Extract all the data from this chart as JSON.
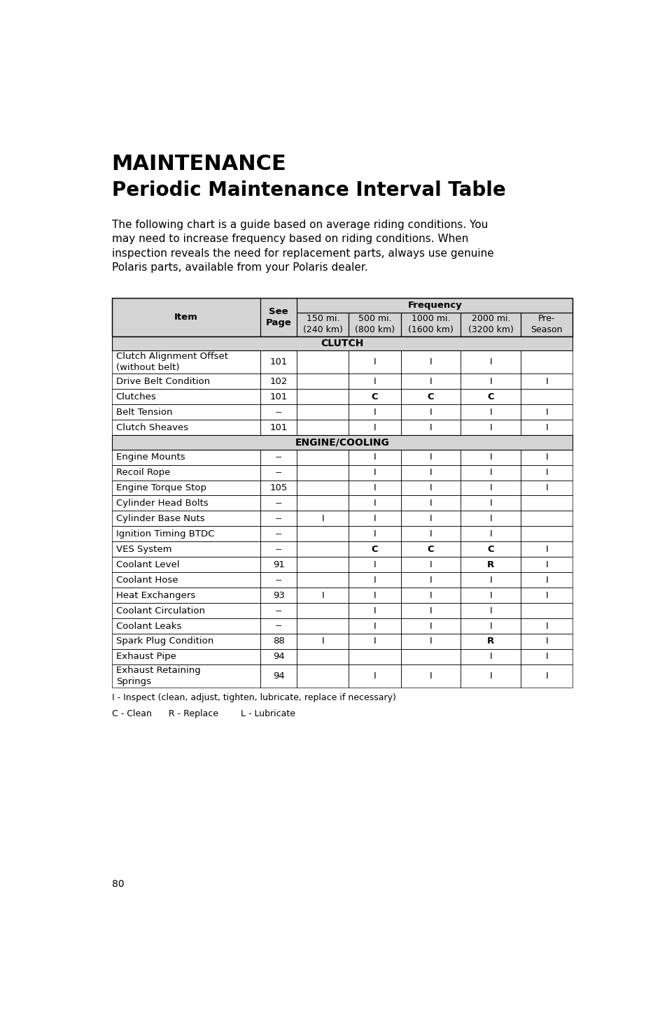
{
  "title1": "MAINTENANCE",
  "title2": "Periodic Maintenance Interval Table",
  "intro_text": "The following chart is a guide based on average riding conditions. You may need to increase frequency based on riding conditions. When inspection reveals the need for replacement parts, always use genuine Polaris parts, available from your Polaris dealer.",
  "col_headers_row2": [
    "",
    "",
    "150 mi.\n(240 km)",
    "500 mi.\n(800 km)",
    "1000 mi.\n(1600 km)",
    "2000 mi.\n(3200 km)",
    "Pre-\nSeason"
  ],
  "rows": [
    [
      "Clutch Alignment Offset\n(without belt)",
      "101",
      "",
      "I",
      "I",
      "I",
      ""
    ],
    [
      "Drive Belt Condition",
      "102",
      "",
      "I",
      "I",
      "I",
      "I"
    ],
    [
      "Clutches",
      "101",
      "",
      "C",
      "C",
      "C",
      ""
    ],
    [
      "Belt Tension",
      "--",
      "",
      "I",
      "I",
      "I",
      "I"
    ],
    [
      "Clutch Sheaves",
      "101",
      "",
      "I",
      "I",
      "I",
      "I"
    ],
    [
      "Engine Mounts",
      "--",
      "",
      "I",
      "I",
      "I",
      "I"
    ],
    [
      "Recoil Rope",
      "--",
      "",
      "I",
      "I",
      "I",
      "I"
    ],
    [
      "Engine Torque Stop",
      "105",
      "",
      "I",
      "I",
      "I",
      "I"
    ],
    [
      "Cylinder Head Bolts",
      "--",
      "",
      "I",
      "I",
      "I",
      ""
    ],
    [
      "Cylinder Base Nuts",
      "--",
      "I",
      "I",
      "I",
      "I",
      ""
    ],
    [
      "Ignition Timing BTDC",
      "--",
      "",
      "I",
      "I",
      "I",
      ""
    ],
    [
      "VES System",
      "--",
      "",
      "C",
      "C",
      "C",
      "I"
    ],
    [
      "Coolant Level",
      "91",
      "",
      "I",
      "I",
      "R",
      "I"
    ],
    [
      "Coolant Hose",
      "--",
      "",
      "I",
      "I",
      "I",
      "I"
    ],
    [
      "Heat Exchangers",
      "93",
      "I",
      "I",
      "I",
      "I",
      "I"
    ],
    [
      "Coolant Circulation",
      "--",
      "",
      "I",
      "I",
      "I",
      ""
    ],
    [
      "Coolant Leaks",
      "--",
      "",
      "I",
      "I",
      "I",
      "I"
    ],
    [
      "Spark Plug Condition",
      "88",
      "I",
      "I",
      "I",
      "R",
      "I"
    ],
    [
      "Exhaust Pipe",
      "94",
      "",
      "",
      "",
      "I",
      "I"
    ],
    [
      "Exhaust Retaining\nSprings",
      "94",
      "",
      "I",
      "I",
      "I",
      "I"
    ]
  ],
  "footnote1": "I - Inspect (clean, adjust, tighten, lubricate, replace if necessary)",
  "footnote2": "C - Clean      R - Replace        L - Lubricate",
  "page_number": "80",
  "bg_color": "#ffffff",
  "header_bg": "#d4d4d4",
  "border_color": "#000000",
  "text_color": "#000000",
  "title1_fs": 22,
  "title2_fs": 20,
  "intro_fs": 11,
  "table_fs": 9.5,
  "header_fs": 9.5,
  "section_fs": 10
}
